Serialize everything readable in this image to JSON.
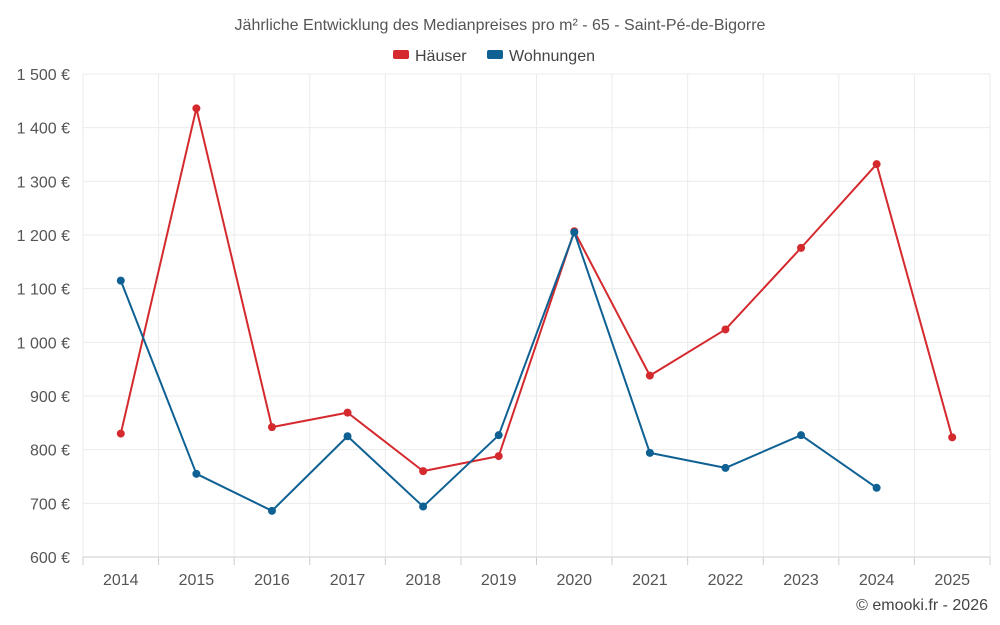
{
  "chart_data": {
    "type": "line",
    "title": "Jährliche Entwicklung des Medianpreises pro m² - 65 - Saint-Pé-de-Bigorre",
    "x": [
      "2014",
      "2015",
      "2016",
      "2017",
      "2018",
      "2019",
      "2020",
      "2021",
      "2022",
      "2023",
      "2024",
      "2025"
    ],
    "series": [
      {
        "name": "Häuser",
        "color": "#d42a2e",
        "values": [
          830,
          1436,
          842,
          869,
          760,
          788,
          1207,
          938,
          1024,
          1176,
          1332,
          823
        ]
      },
      {
        "name": "Wohnungen",
        "color": "#0f6194",
        "values": [
          1115,
          755,
          686,
          825,
          694,
          827,
          1205,
          794,
          766,
          827,
          729,
          null
        ]
      }
    ],
    "ylim": [
      600,
      1500
    ],
    "yticks": [
      600,
      700,
      800,
      900,
      1000,
      1100,
      1200,
      1300,
      1400,
      1500
    ],
    "ytick_labels": [
      "600 €",
      "700 €",
      "800 €",
      "900 €",
      "1 000 €",
      "1 100 €",
      "1 200 €",
      "1 300 €",
      "1 400 €",
      "1 500 €"
    ],
    "xlabel": "",
    "ylabel": "",
    "grid": true,
    "legend_position": "top-center"
  },
  "credit": "© emooki.fr - 2026"
}
